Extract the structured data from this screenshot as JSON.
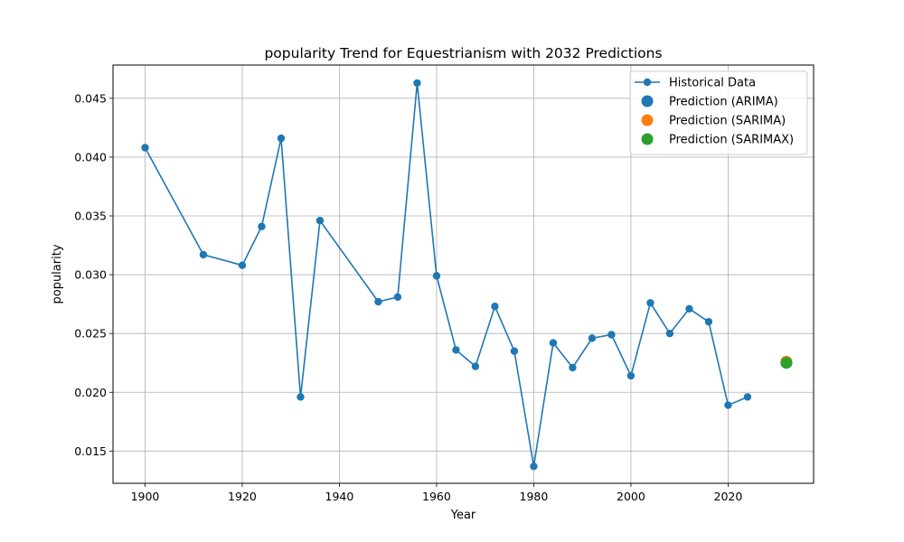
{
  "chart_data": {
    "type": "line",
    "title": "popularity Trend for Equestrianism with 2032 Predictions",
    "xlabel": "Year",
    "ylabel": "popularity",
    "xlim": [
      1893.4,
      2037.6
    ],
    "ylim": [
      0.01226,
      0.04783
    ],
    "grid": true,
    "legend_position": "top-right",
    "x_ticks": [
      1900,
      1920,
      1940,
      1960,
      1980,
      2000,
      2020
    ],
    "y_ticks": [
      0.015,
      0.02,
      0.025,
      0.03,
      0.035,
      0.04,
      0.045
    ],
    "y_tick_labels": [
      "0.015",
      "0.020",
      "0.025",
      "0.030",
      "0.035",
      "0.040",
      "0.045"
    ],
    "series": [
      {
        "name": "Historical Data",
        "kind": "line-marker",
        "color": "#1f77b4",
        "x": [
          1900,
          1912,
          1920,
          1924,
          1928,
          1932,
          1936,
          1948,
          1952,
          1956,
          1960,
          1964,
          1968,
          1972,
          1976,
          1980,
          1984,
          1988,
          1992,
          1996,
          2000,
          2004,
          2008,
          2012,
          2016,
          2020,
          2024
        ],
        "y": [
          0.0408,
          0.0317,
          0.0308,
          0.0341,
          0.0416,
          0.0196,
          0.0346,
          0.0277,
          0.0281,
          0.0463,
          0.0299,
          0.0236,
          0.0222,
          0.0273,
          0.0235,
          0.0137,
          0.0242,
          0.0221,
          0.0246,
          0.0249,
          0.0214,
          0.0276,
          0.025,
          0.0271,
          0.026,
          0.0189,
          0.0196
        ]
      },
      {
        "name": "Prediction (ARIMA)",
        "kind": "point",
        "color": "#1f77b4",
        "x": [
          2032
        ],
        "y": [
          0.0225
        ]
      },
      {
        "name": "Prediction (SARIMA)",
        "kind": "point",
        "color": "#ff7f0e",
        "x": [
          2032
        ],
        "y": [
          0.0226
        ]
      },
      {
        "name": "Prediction (SARIMAX)",
        "kind": "point",
        "color": "#2ca02c",
        "x": [
          2032
        ],
        "y": [
          0.0225
        ]
      }
    ]
  }
}
